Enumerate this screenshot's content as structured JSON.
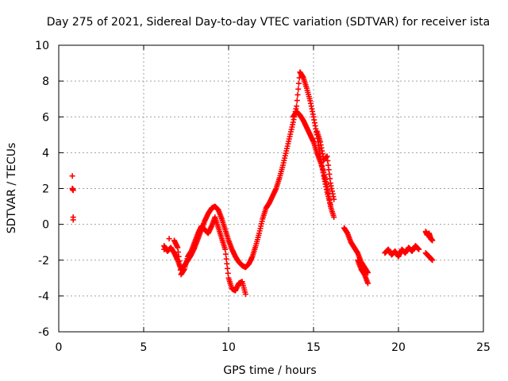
{
  "chart_data": {
    "type": "scatter",
    "title": "Day 275 of 2021, Sidereal Day-to-day VTEC variation (SDTVAR) for receiver ista",
    "xlabel": "GPS time / hours",
    "ylabel": "SDTVAR / TECUs",
    "xlim": [
      0,
      25
    ],
    "ylim": [
      -6,
      10
    ],
    "xticks": [
      0,
      5,
      10,
      15,
      20,
      25
    ],
    "yticks": [
      -6,
      -4,
      -2,
      0,
      2,
      4,
      6,
      8,
      10
    ],
    "grid": true,
    "marker": "+",
    "color": "#ff0000",
    "series": [
      {
        "name": "ista",
        "points": [
          [
            0.8,
            2.7
          ],
          [
            0.8,
            2.0
          ],
          [
            0.85,
            1.9
          ],
          [
            0.85,
            0.4
          ],
          [
            0.85,
            0.25
          ],
          [
            6.2,
            -1.2
          ],
          [
            6.4,
            -1.5
          ],
          [
            6.6,
            -1.3
          ],
          [
            6.8,
            -1.6
          ],
          [
            7.0,
            -2.0
          ],
          [
            7.2,
            -2.5
          ],
          [
            7.4,
            -2.3
          ],
          [
            7.6,
            -2.0
          ],
          [
            7.8,
            -1.7
          ],
          [
            8.0,
            -1.3
          ],
          [
            8.2,
            -0.8
          ],
          [
            8.4,
            -0.3
          ],
          [
            8.6,
            0.2
          ],
          [
            8.8,
            0.6
          ],
          [
            9.0,
            0.9
          ],
          [
            9.2,
            1.0
          ],
          [
            9.4,
            0.8
          ],
          [
            9.6,
            0.3
          ],
          [
            9.8,
            -0.3
          ],
          [
            10.0,
            -0.9
          ],
          [
            10.2,
            -1.4
          ],
          [
            10.4,
            -1.8
          ],
          [
            10.6,
            -2.1
          ],
          [
            10.8,
            -2.3
          ],
          [
            11.0,
            -2.4
          ],
          [
            11.2,
            -2.2
          ],
          [
            11.4,
            -1.8
          ],
          [
            11.6,
            -1.2
          ],
          [
            11.8,
            -0.5
          ],
          [
            12.0,
            0.3
          ],
          [
            12.2,
            0.9
          ],
          [
            12.4,
            1.2
          ],
          [
            12.6,
            1.6
          ],
          [
            12.8,
            2.0
          ],
          [
            13.0,
            2.6
          ],
          [
            13.2,
            3.3
          ],
          [
            13.4,
            4.1
          ],
          [
            13.6,
            4.9
          ],
          [
            13.8,
            5.7
          ],
          [
            14.0,
            6.6
          ],
          [
            14.2,
            8.5
          ],
          [
            14.4,
            8.2
          ],
          [
            14.6,
            7.6
          ],
          [
            14.8,
            6.9
          ],
          [
            15.0,
            6.0
          ],
          [
            15.2,
            5.0
          ],
          [
            15.4,
            3.8
          ],
          [
            15.6,
            2.7
          ],
          [
            15.8,
            1.8
          ],
          [
            16.0,
            1.1
          ],
          [
            6.2,
            -1.4
          ],
          [
            6.5,
            -0.8
          ],
          [
            6.8,
            -0.9
          ],
          [
            7.0,
            -1.3
          ],
          [
            7.2,
            -2.8
          ],
          [
            7.4,
            -2.5
          ],
          [
            7.6,
            -1.8
          ],
          [
            7.8,
            -1.5
          ],
          [
            8.0,
            -1.0
          ],
          [
            8.2,
            -0.5
          ],
          [
            8.4,
            -0.1
          ],
          [
            8.6,
            -0.3
          ],
          [
            8.8,
            -0.5
          ],
          [
            9.0,
            -0.1
          ],
          [
            9.2,
            0.4
          ],
          [
            9.4,
            -0.2
          ],
          [
            9.6,
            -0.8
          ],
          [
            9.8,
            -1.4
          ],
          [
            10.0,
            -3.0
          ],
          [
            10.2,
            -3.6
          ],
          [
            10.4,
            -3.7
          ],
          [
            10.6,
            -3.3
          ],
          [
            10.8,
            -3.2
          ],
          [
            11.0,
            -3.9
          ],
          [
            13.8,
            6.0
          ],
          [
            14.0,
            6.3
          ],
          [
            14.2,
            6.1
          ],
          [
            14.4,
            5.8
          ],
          [
            14.6,
            5.4
          ],
          [
            14.8,
            5.0
          ],
          [
            15.0,
            4.6
          ],
          [
            15.2,
            4.0
          ],
          [
            15.4,
            3.5
          ],
          [
            15.6,
            2.9
          ],
          [
            15.8,
            2.1
          ],
          [
            16.0,
            1.0
          ],
          [
            16.2,
            0.4
          ],
          [
            15.2,
            5.2
          ],
          [
            15.4,
            4.6
          ],
          [
            15.6,
            3.6
          ],
          [
            15.8,
            3.8
          ],
          [
            16.0,
            2.3
          ],
          [
            16.2,
            1.4
          ],
          [
            16.8,
            -0.2
          ],
          [
            17.0,
            -0.5
          ],
          [
            17.2,
            -1.0
          ],
          [
            17.4,
            -1.3
          ],
          [
            17.6,
            -1.6
          ],
          [
            17.8,
            -2.1
          ],
          [
            18.0,
            -2.4
          ],
          [
            18.2,
            -2.7
          ],
          [
            17.6,
            -2.0
          ],
          [
            17.8,
            -2.5
          ],
          [
            18.0,
            -2.8
          ],
          [
            18.2,
            -3.3
          ],
          [
            19.2,
            -1.6
          ],
          [
            19.4,
            -1.4
          ],
          [
            19.6,
            -1.7
          ],
          [
            19.8,
            -1.5
          ],
          [
            20.0,
            -1.8
          ],
          [
            20.2,
            -1.4
          ],
          [
            20.4,
            -1.6
          ],
          [
            20.6,
            -1.3
          ],
          [
            20.8,
            -1.5
          ],
          [
            21.0,
            -1.2
          ],
          [
            21.2,
            -1.4
          ],
          [
            21.6,
            -0.4
          ],
          [
            21.7,
            -0.6
          ],
          [
            21.8,
            -0.5
          ],
          [
            21.9,
            -0.8
          ],
          [
            22.0,
            -0.9
          ],
          [
            21.6,
            -1.6
          ],
          [
            21.8,
            -1.8
          ],
          [
            22.0,
            -2.0
          ]
        ]
      }
    ]
  }
}
